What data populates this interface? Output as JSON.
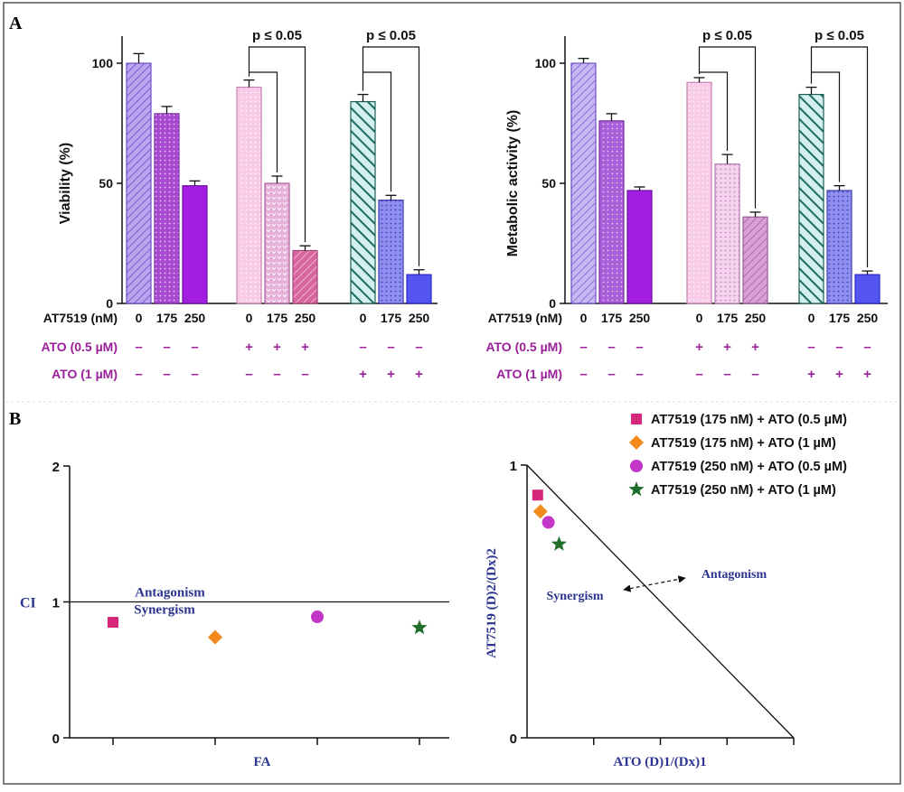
{
  "panel_labels": {
    "a": "A",
    "b": "B"
  },
  "colors": {
    "purple_label": "#9b1f9b",
    "annotation_blue": "#2b3590",
    "axis": "#111111",
    "frame": "#444444"
  },
  "chart_data": [
    {
      "id": "viability",
      "type": "bar",
      "ylabel": "Viability (%)",
      "ylim": [
        0,
        100
      ],
      "yticks": [
        0,
        50,
        100
      ],
      "row_labels": [
        "AT7519 (nM)",
        "ATO (0.5 µM)",
        "ATO (1 µM)"
      ],
      "p_label": "p ≤ 0.05",
      "groups": [
        {
          "at7519": [
            "0",
            "175",
            "250"
          ],
          "ato05": [
            "–",
            "–",
            "–"
          ],
          "ato1": [
            "–",
            "–",
            "–"
          ],
          "values": [
            100,
            79,
            49
          ],
          "errors": [
            4,
            3,
            2
          ],
          "bracket": false
        },
        {
          "at7519": [
            "0",
            "175",
            "250"
          ],
          "ato05": [
            "+",
            "+",
            "+"
          ],
          "ato1": [
            "–",
            "–",
            "–"
          ],
          "values": [
            90,
            50,
            22
          ],
          "errors": [
            3,
            3,
            2
          ],
          "bracket": true
        },
        {
          "at7519": [
            "0",
            "175",
            "250"
          ],
          "ato05": [
            "–",
            "–",
            "–"
          ],
          "ato1": [
            "+",
            "+",
            "+"
          ],
          "values": [
            84,
            43,
            12
          ],
          "errors": [
            3,
            2,
            2
          ],
          "bracket": true
        }
      ]
    },
    {
      "id": "metabolic",
      "type": "bar",
      "ylabel": "Metabolic activity (%)",
      "ylim": [
        0,
        100
      ],
      "yticks": [
        0,
        50,
        100
      ],
      "row_labels": [
        "AT7519 (nM)",
        "ATO (0.5 µM)",
        "ATO (1 µM)"
      ],
      "p_label": "p ≤ 0.05",
      "groups": [
        {
          "at7519": [
            "0",
            "175",
            "250"
          ],
          "ato05": [
            "–",
            "–",
            "–"
          ],
          "ato1": [
            "–",
            "–",
            "–"
          ],
          "values": [
            100,
            76,
            47
          ],
          "errors": [
            2,
            3,
            1.5
          ],
          "bracket": false
        },
        {
          "at7519": [
            "0",
            "175",
            "250"
          ],
          "ato05": [
            "+",
            "+",
            "+"
          ],
          "ato1": [
            "–",
            "–",
            "–"
          ],
          "values": [
            92,
            58,
            36
          ],
          "errors": [
            2,
            4,
            2
          ],
          "bracket": true
        },
        {
          "at7519": [
            "0",
            "175",
            "250"
          ],
          "ato05": [
            "–",
            "–",
            "–"
          ],
          "ato1": [
            "+",
            "+",
            "+"
          ],
          "values": [
            87,
            47,
            12
          ],
          "errors": [
            3,
            2,
            1.5
          ],
          "bracket": true
        }
      ]
    },
    {
      "id": "ci-plot",
      "type": "scatter",
      "xlabel": "FA",
      "ylabel": "CI",
      "ylim": [
        0,
        2
      ],
      "yticks": [
        "0",
        "1",
        "2"
      ],
      "reference_line": 1,
      "antagonism_label": "Antagonism",
      "synergism_label": "Synergism",
      "points": [
        {
          "series": 0,
          "x": 1,
          "y": 0.85
        },
        {
          "series": 1,
          "x": 2,
          "y": 0.74
        },
        {
          "series": 2,
          "x": 3,
          "y": 0.89
        },
        {
          "series": 3,
          "x": 4,
          "y": 0.81
        }
      ]
    },
    {
      "id": "isobologram",
      "type": "scatter",
      "xlabel": "ATO (D)1/(Dx)1",
      "ylabel": "AT7519 (D)2/(Dx)2",
      "xlim": [
        0,
        1
      ],
      "ylim": [
        0,
        1
      ],
      "yticks": [
        "0",
        "1"
      ],
      "synergism_label": "Synergism",
      "antagonism_label": "Antagonism",
      "points": [
        {
          "series": 0,
          "x": 0.04,
          "y": 0.89
        },
        {
          "series": 1,
          "x": 0.05,
          "y": 0.83
        },
        {
          "series": 2,
          "x": 0.08,
          "y": 0.79
        },
        {
          "series": 3,
          "x": 0.12,
          "y": 0.71
        }
      ]
    }
  ],
  "legend": [
    {
      "label": "AT7519 (175 nM) + ATO (0.5 µM)",
      "marker": "square",
      "color": "#d6267a"
    },
    {
      "label": "AT7519 (175 nM) + ATO (1 µM)",
      "marker": "diamond",
      "color": "#f28a1e"
    },
    {
      "label": "AT7519 (250 nM) + ATO (0.5 µM)",
      "marker": "circle",
      "color": "#c436c8"
    },
    {
      "label": "AT7519 (250 nM) + ATO (1 µM)",
      "marker": "star",
      "color": "#1f6e2a"
    }
  ]
}
